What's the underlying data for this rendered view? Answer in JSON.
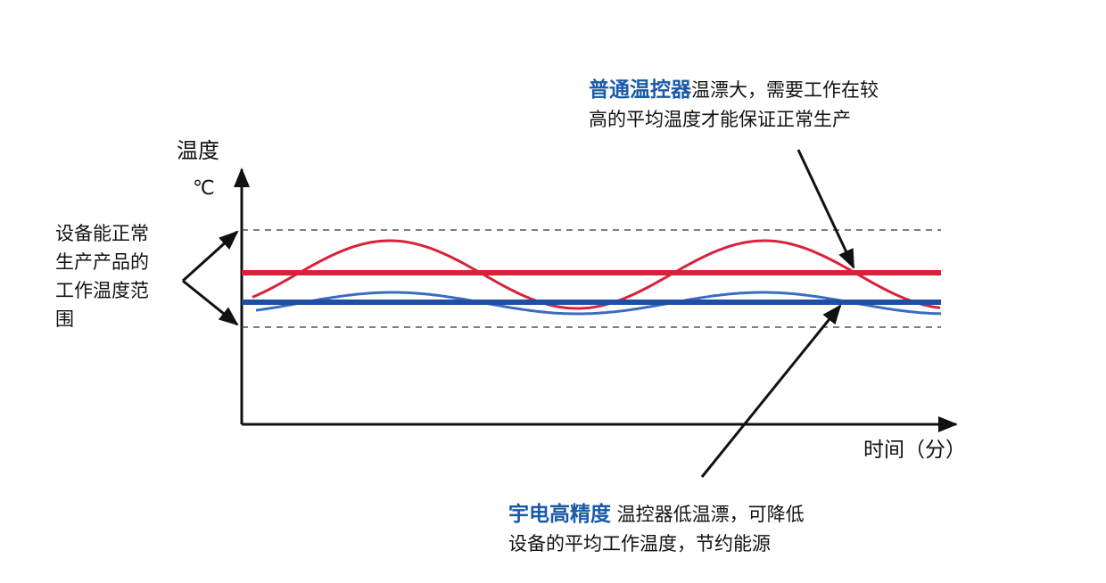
{
  "axes": {
    "y_label": "温度",
    "y_unit": "℃",
    "x_label": "时间（分）"
  },
  "range_label": [
    "设备能正常",
    "生产产品的",
    "工作温度范",
    "围"
  ],
  "annotation_top": {
    "highlight": "普通温控器",
    "line1": "温漂大，需要工作在较",
    "line2": "高的平均温度才能保证正常生产"
  },
  "annotation_bottom": {
    "highlight": "宇电高精度",
    "line1": " 温控器低温漂，可降低",
    "line2": "设备的平均工作温度，节约能源"
  },
  "colors": {
    "standard_controller": "#d9213a",
    "precision_controller": "#1f4ea3",
    "precision_wave": "#3a6cc0",
    "highlight_text": "#1a5aa8"
  }
}
